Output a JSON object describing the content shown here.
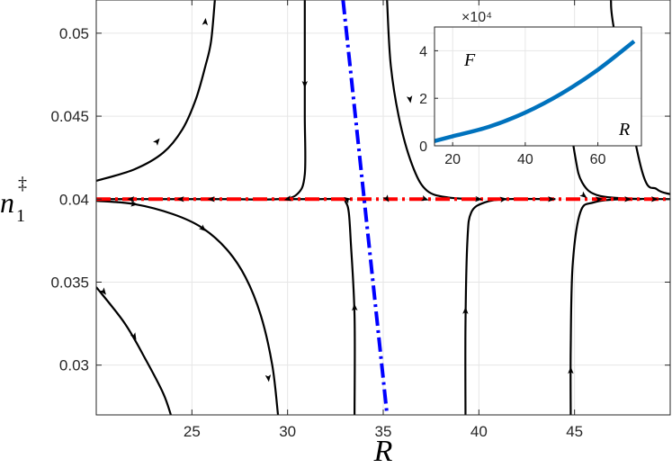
{
  "chart_data": {
    "type": "line",
    "xlabel": "R",
    "ylabel_base": "n",
    "ylabel_sub": "1",
    "ylabel_sup": "‡",
    "xlim": [
      20,
      50
    ],
    "ylim": [
      0.027,
      0.052
    ],
    "xticks": [
      25,
      30,
      35,
      40,
      45
    ],
    "yticks": [
      0.03,
      0.035,
      0.04,
      0.045,
      0.05
    ],
    "ytick_labels": [
      "0.03",
      "0.035",
      "0.04",
      "0.045",
      "0.05"
    ],
    "grid": true,
    "colors": {
      "trajectory": "#000000",
      "horizontal_line": "#ff0000",
      "slanted_line": "#0000ff",
      "inset_curve": "#0072bd"
    },
    "reference_lines": [
      {
        "style": "dash-dot",
        "color": "#ff0000",
        "points": [
          [
            20,
            0.04
          ],
          [
            50,
            0.04
          ]
        ]
      },
      {
        "style": "dash-dot",
        "color": "#0000ff",
        "points": [
          [
            32.9,
            0.052
          ],
          [
            35.2,
            0.027
          ]
        ]
      }
    ],
    "trajectories": [
      {
        "points": [
          [
            20,
            0.0411
          ],
          [
            22,
            0.0418
          ],
          [
            23.5,
            0.0428
          ],
          [
            24.5,
            0.0442
          ],
          [
            25.2,
            0.046
          ],
          [
            25.7,
            0.048
          ],
          [
            26,
            0.0495
          ],
          [
            26.2,
            0.052
          ]
        ],
        "arrows": [
          [
            25.7,
            0.0507
          ],
          [
            23.2,
            0.0435
          ]
        ]
      },
      {
        "points": [
          [
            20,
            0.0399
          ],
          [
            22,
            0.0397
          ],
          [
            24,
            0.0391
          ],
          [
            25.5,
            0.0383
          ],
          [
            26.8,
            0.037
          ],
          [
            27.8,
            0.0353
          ],
          [
            28.6,
            0.033
          ],
          [
            29.2,
            0.03
          ],
          [
            29.5,
            0.027
          ]
        ],
        "arrows": [
          [
            22,
            0.0397
          ],
          [
            25.6,
            0.0382
          ],
          [
            29,
            0.0292
          ]
        ]
      },
      {
        "points": [
          [
            20,
            0.0347
          ],
          [
            21.5,
            0.0325
          ],
          [
            22.6,
            0.0303
          ],
          [
            23.5,
            0.0283
          ],
          [
            23.9,
            0.027
          ]
        ],
        "arrows": [
          [
            20.4,
            0.0344
          ],
          [
            22,
            0.0317
          ]
        ]
      },
      {
        "points": [
          [
            30.9,
            0.052
          ],
          [
            30.9,
            0.049
          ],
          [
            30.9,
            0.045
          ],
          [
            30.9,
            0.0415
          ],
          [
            30.5,
            0.0403
          ],
          [
            29.5,
            0.04
          ],
          [
            27,
            0.04
          ],
          [
            24.4,
            0.04
          ],
          [
            22,
            0.04
          ],
          [
            20,
            0.04
          ]
        ],
        "arrows": [
          [
            30.9,
            0.0469
          ],
          [
            30,
            0.04
          ],
          [
            26,
            0.04
          ],
          [
            24.4,
            0.04
          ],
          [
            21.8,
            0.04
          ]
        ]
      },
      {
        "points": [
          [
            33.5,
            0.027
          ],
          [
            33.5,
            0.033
          ],
          [
            33.3,
            0.0375
          ],
          [
            33.2,
            0.0392
          ],
          [
            33.05,
            0.0398
          ],
          [
            32.8,
            0.04
          ],
          [
            31.5,
            0.04
          ],
          [
            30,
            0.04
          ]
        ],
        "arrows": [
          [
            33.5,
            0.0335
          ],
          [
            33.1,
            0.04
          ]
        ]
      },
      {
        "points": [
          [
            35.2,
            0.052
          ],
          [
            35.4,
            0.048
          ],
          [
            35.9,
            0.0445
          ],
          [
            36.6,
            0.0418
          ],
          [
            37.3,
            0.0405
          ],
          [
            38.4,
            0.0401
          ],
          [
            40,
            0.04
          ]
        ],
        "arrows": [
          [
            36.4,
            0.046
          ],
          [
            35.2,
            0.04
          ],
          [
            37.2,
            0.04
          ],
          [
            40,
            0.04
          ]
        ]
      },
      {
        "points": [
          [
            39.3,
            0.027
          ],
          [
            39.3,
            0.0325
          ],
          [
            39.4,
            0.0375
          ],
          [
            39.6,
            0.0392
          ],
          [
            40.3,
            0.0398
          ],
          [
            41.5,
            0.04
          ],
          [
            44,
            0.04
          ]
        ],
        "arrows": [
          [
            39.3,
            0.0333
          ],
          [
            41.3,
            0.04
          ],
          [
            43.8,
            0.04
          ]
        ]
      },
      {
        "points": [
          [
            44.8,
            0.027
          ],
          [
            44.8,
            0.031
          ],
          [
            44.9,
            0.036
          ],
          [
            45.3,
            0.0392
          ],
          [
            46,
            0.0398
          ],
          [
            47.5,
            0.04
          ],
          [
            50,
            0.04
          ]
        ],
        "arrows": [
          [
            44.8,
            0.0297
          ],
          [
            46.3,
            0.04
          ],
          [
            47.8,
            0.04
          ],
          [
            49.2,
            0.04
          ]
        ]
      },
      {
        "points": [
          [
            44.4,
            0.0476
          ],
          [
            45,
            0.0428
          ],
          [
            45.4,
            0.041
          ],
          [
            46.3,
            0.0402
          ],
          [
            48.5,
            0.04
          ]
        ],
        "arrows": [
          [
            45.5,
            0.0402
          ]
        ]
      },
      {
        "points": [
          [
            46.9,
            0.052
          ],
          [
            47.1,
            0.05
          ],
          [
            48.5,
            0.0418
          ],
          [
            49.3,
            0.0406
          ],
          [
            50,
            0.0403
          ]
        ],
        "arrows": []
      }
    ],
    "inset": {
      "type": "line",
      "xlabel": "R",
      "ylabel": "F",
      "exponent_label": "×10⁴",
      "xlim": [
        15,
        72
      ],
      "ylim": [
        0,
        5
      ],
      "xticks": [
        20,
        40,
        60
      ],
      "yticks": [
        0,
        2,
        4
      ],
      "series": [
        {
          "x": [
            15,
            20,
            30,
            40,
            50,
            60,
            70
          ],
          "y": [
            0.2,
            0.4,
            0.8,
            1.4,
            2.2,
            3.2,
            4.4
          ]
        }
      ]
    }
  }
}
